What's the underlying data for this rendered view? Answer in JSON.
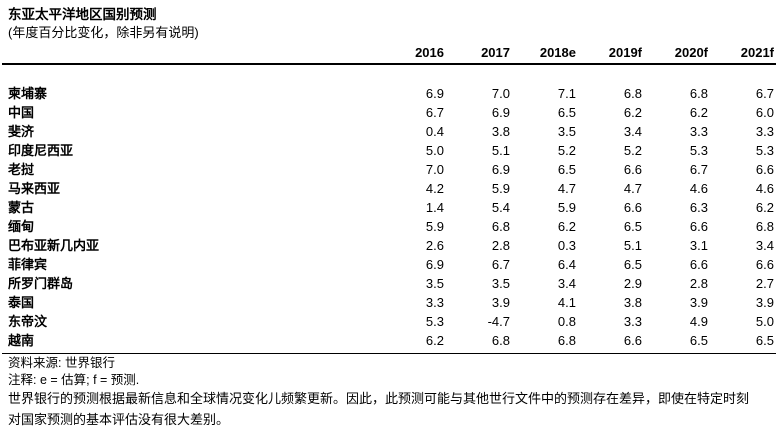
{
  "title": "东亚太平洋地区国别预测",
  "subtitle": "(年度百分比变化，除非另有说明)",
  "table": {
    "year_headers": [
      "2016",
      "2017",
      "2018e",
      "2019f",
      "2020f",
      "2021f"
    ],
    "rows": [
      {
        "country": "柬埔寨",
        "values": [
          "6.9",
          "7.0",
          "7.1",
          "6.8",
          "6.8",
          "6.7"
        ]
      },
      {
        "country": "中国",
        "values": [
          "6.7",
          "6.9",
          "6.5",
          "6.2",
          "6.2",
          "6.0"
        ]
      },
      {
        "country": "斐济",
        "values": [
          "0.4",
          "3.8",
          "3.5",
          "3.4",
          "3.3",
          "3.3"
        ]
      },
      {
        "country": "印度尼西亚",
        "values": [
          "5.0",
          "5.1",
          "5.2",
          "5.2",
          "5.3",
          "5.3"
        ]
      },
      {
        "country": "老挝",
        "values": [
          "7.0",
          "6.9",
          "6.5",
          "6.6",
          "6.7",
          "6.6"
        ]
      },
      {
        "country": "马来西亚",
        "values": [
          "4.2",
          "5.9",
          "4.7",
          "4.7",
          "4.6",
          "4.6"
        ]
      },
      {
        "country": "蒙古",
        "values": [
          "1.4",
          "5.4",
          "5.9",
          "6.6",
          "6.3",
          "6.2"
        ]
      },
      {
        "country": "缅甸",
        "values": [
          "5.9",
          "6.8",
          "6.2",
          "6.5",
          "6.6",
          "6.8"
        ]
      },
      {
        "country": "巴布亚新几内亚",
        "values": [
          "2.6",
          "2.8",
          "0.3",
          "5.1",
          "3.1",
          "3.4"
        ]
      },
      {
        "country": "菲律宾",
        "values": [
          "6.9",
          "6.7",
          "6.4",
          "6.5",
          "6.6",
          "6.6"
        ]
      },
      {
        "country": "所罗门群岛",
        "values": [
          "3.5",
          "3.5",
          "3.4",
          "2.9",
          "2.8",
          "2.7"
        ]
      },
      {
        "country": "泰国",
        "values": [
          "3.3",
          "3.9",
          "4.1",
          "3.8",
          "3.9",
          "3.9"
        ]
      },
      {
        "country": "东帝汶",
        "values": [
          "5.3",
          "-4.7",
          "0.8",
          "3.3",
          "4.9",
          "5.0"
        ]
      },
      {
        "country": "越南",
        "values": [
          "6.2",
          "6.8",
          "6.8",
          "6.6",
          "6.5",
          "6.5"
        ]
      }
    ]
  },
  "footer": {
    "source": "资料来源: 世界银行",
    "note": "注释: e = 估算; f = 预测.",
    "disclaimer": "世界银行的预测根据最新信息和全球情况变化儿频繁更新。因此，此预测可能与其他世行文件中的预测存在差异，即使在特定时刻对国家预测的基本评估没有很大差别。"
  },
  "chart_data": {
    "type": "table",
    "title": "东亚太平洋地区国别预测",
    "subtitle": "(年度百分比变化，除非另有说明)",
    "columns": [
      "2016",
      "2017",
      "2018e",
      "2019f",
      "2020f",
      "2021f"
    ],
    "series": [
      {
        "name": "柬埔寨",
        "values": [
          6.9,
          7.0,
          7.1,
          6.8,
          6.8,
          6.7
        ]
      },
      {
        "name": "中国",
        "values": [
          6.7,
          6.9,
          6.5,
          6.2,
          6.2,
          6.0
        ]
      },
      {
        "name": "斐济",
        "values": [
          0.4,
          3.8,
          3.5,
          3.4,
          3.3,
          3.3
        ]
      },
      {
        "name": "印度尼西亚",
        "values": [
          5.0,
          5.1,
          5.2,
          5.2,
          5.3,
          5.3
        ]
      },
      {
        "name": "老挝",
        "values": [
          7.0,
          6.9,
          6.5,
          6.6,
          6.7,
          6.6
        ]
      },
      {
        "name": "马来西亚",
        "values": [
          4.2,
          5.9,
          4.7,
          4.7,
          4.6,
          4.6
        ]
      },
      {
        "name": "蒙古",
        "values": [
          1.4,
          5.4,
          5.9,
          6.6,
          6.3,
          6.2
        ]
      },
      {
        "name": "缅甸",
        "values": [
          5.9,
          6.8,
          6.2,
          6.5,
          6.6,
          6.8
        ]
      },
      {
        "name": "巴布亚新几内亚",
        "values": [
          2.6,
          2.8,
          0.3,
          5.1,
          3.1,
          3.4
        ]
      },
      {
        "name": "菲律宾",
        "values": [
          6.9,
          6.7,
          6.4,
          6.5,
          6.6,
          6.6
        ]
      },
      {
        "name": "所罗门群岛",
        "values": [
          3.5,
          3.5,
          3.4,
          2.9,
          2.8,
          2.7
        ]
      },
      {
        "name": "泰国",
        "values": [
          3.3,
          3.9,
          4.1,
          3.8,
          3.9,
          3.9
        ]
      },
      {
        "name": "东帝汶",
        "values": [
          5.3,
          -4.7,
          0.8,
          3.3,
          4.9,
          5.0
        ]
      },
      {
        "name": "越南",
        "values": [
          6.2,
          6.8,
          6.8,
          6.6,
          6.5,
          6.5
        ]
      }
    ],
    "source": "世界银行",
    "legend_notes": {
      "e": "估算",
      "f": "预测"
    }
  }
}
